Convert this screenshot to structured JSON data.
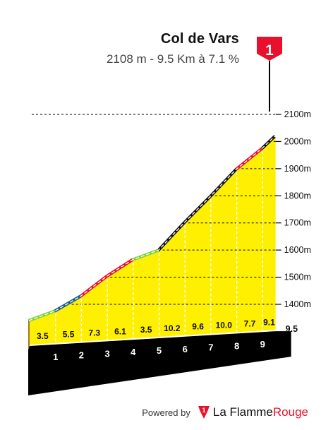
{
  "header": {
    "title": "Col de Vars",
    "subtitle": "2108 m - 9.5 Km à 7.1 %"
  },
  "flag": {
    "label": "1",
    "color": "#e8112d"
  },
  "footer": {
    "powered_by": "Powered by",
    "brand_part1": "La Flamme",
    "brand_part2": "Rouge",
    "brand_color": "#e8112d"
  },
  "colors": {
    "fill": "#ffef00",
    "side": "#a37c1b",
    "base": "#000000",
    "road_light": "#7fd13b",
    "road_moderate": "#1a5e8a",
    "road_hard": "#e8112d",
    "road_very_hard": "#111111",
    "dash": "#ffffff"
  },
  "chart_data": {
    "type": "area",
    "title": "Col de Vars",
    "subtitle": "2108 m - 9.5 Km à 7.1 %",
    "ylim": [
      1335,
      2108
    ],
    "y_ticks": [
      1400,
      1500,
      1600,
      1700,
      1800,
      1900,
      2000,
      2100
    ],
    "y_tick_labels": [
      "1400m",
      "1500m",
      "1600m",
      "1700m",
      "1800m",
      "1900m",
      "2000m",
      "2100m"
    ],
    "x_ticks": [
      "1",
      "2",
      "3",
      "4",
      "5",
      "6",
      "7",
      "8",
      "9"
    ],
    "end_label": "9.5",
    "km_start": [
      0,
      1,
      2,
      3,
      4,
      5,
      6,
      7,
      8,
      9
    ],
    "km_length": [
      1,
      1,
      1,
      1,
      1,
      1,
      1,
      1,
      1,
      0.5
    ],
    "gradient_labels": [
      "3.5",
      "5.5",
      "7.3",
      "6.1",
      "3.5",
      "10.2",
      "9.6",
      "10.0",
      "7.7",
      "9.1"
    ],
    "gradients": [
      3.5,
      5.5,
      7.3,
      6.1,
      3.5,
      10.2,
      9.6,
      10.0,
      7.7,
      9.1
    ],
    "elevation_start": 1335,
    "summit_elevation": 2108,
    "difficulty": [
      "light",
      "moderate",
      "hard",
      "hard",
      "light",
      "very_hard",
      "very_hard",
      "very_hard",
      "hard",
      "very_hard"
    ],
    "grid": true
  }
}
